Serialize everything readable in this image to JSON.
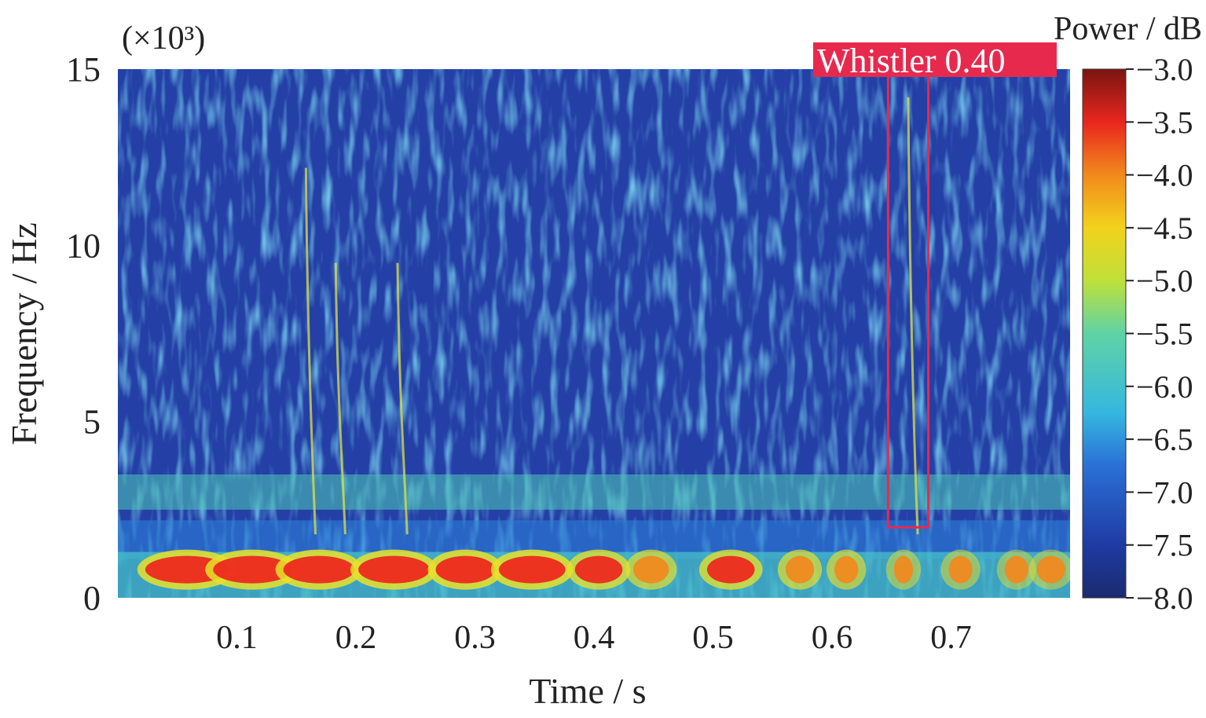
{
  "chart_data": {
    "type": "heatmap",
    "title": "",
    "xlabel": "Time / s",
    "ylabel": "Frequency / Hz",
    "y_multiplier": "(×10³)",
    "xlim": [
      0.0,
      0.8
    ],
    "ylim": [
      0,
      15
    ],
    "x_ticks": [
      0.1,
      0.2,
      0.3,
      0.4,
      0.5,
      0.6,
      0.7
    ],
    "x_tick_labels": [
      "0.1",
      "0.2",
      "0.3",
      "0.4",
      "0.5",
      "0.6",
      "0.7"
    ],
    "y_ticks": [
      0,
      5,
      10,
      15
    ],
    "y_tick_labels": [
      "0",
      "5",
      "10",
      "15"
    ],
    "colorbar": {
      "label": "Power / dB",
      "range": [
        -8.0,
        -3.0
      ],
      "ticks": [
        -3.0,
        -3.5,
        -4.0,
        -4.5,
        -5.0,
        -5.5,
        -6.0,
        -6.5,
        -7.0,
        -7.5,
        -8.0
      ],
      "tick_labels": [
        "−3.0",
        "−3.5",
        "−4.0",
        "−4.5",
        "−5.0",
        "−5.5",
        "−6.0",
        "−6.5",
        "−7.0",
        "−7.5",
        "−8.0"
      ],
      "colormap": "jet"
    },
    "features": {
      "background_level_db": -7.2,
      "band_0_1khz": {
        "freq_khz": [
          0.5,
          1.1
        ],
        "level_db": -3.6,
        "x_range": [
          0.0,
          0.8
        ]
      },
      "band_2_3khz": {
        "freq_khz": [
          2.5,
          3.5
        ],
        "level_db": -5.6,
        "x_range": [
          0.0,
          0.8
        ]
      },
      "whistler_traces_x": [
        0.158,
        0.183,
        0.235,
        0.664
      ]
    },
    "annotations": [
      {
        "label": "Whistler 0.40",
        "x_range": [
          0.655,
          0.673
        ],
        "y_range": [
          2.0,
          15.0
        ],
        "color": "#e8294e"
      }
    ]
  }
}
